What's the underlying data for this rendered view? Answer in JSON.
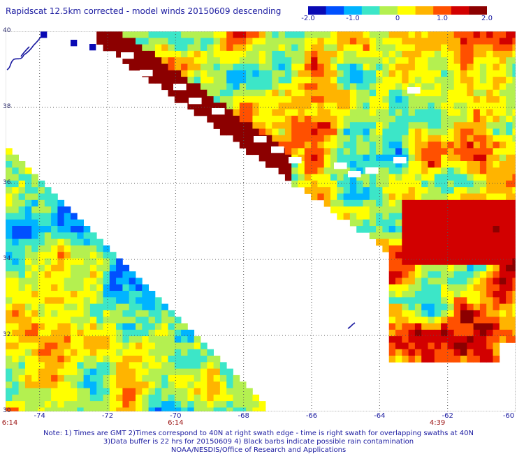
{
  "title": "Rapidscat 12.5km corrected - model winds 20150609 descending",
  "colorbar": {
    "ticks": [
      "-2.0",
      "-1.0",
      "0",
      "1.0",
      "2.0"
    ],
    "min": -2.0,
    "max": 2.0,
    "colors": [
      "#0a0ab4",
      "#0050ff",
      "#00b4ff",
      "#3ce6c8",
      "#b4f050",
      "#ffff00",
      "#ffb400",
      "#ff5000",
      "#d20000",
      "#8c0000"
    ]
  },
  "map": {
    "lat_labels": [
      "40",
      "38",
      "36",
      "34",
      "32",
      "30"
    ],
    "lon_labels": [
      "-74",
      "-72",
      "-70",
      "-68",
      "-66",
      "-64",
      "-62",
      "-60"
    ],
    "lat_range": [
      30,
      40
    ],
    "lon_range": [
      -75,
      -60
    ],
    "grid": "dotted"
  },
  "times": [
    {
      "label": "6:14",
      "lon": -75.0
    },
    {
      "label": "6:14",
      "lon": -70.0
    },
    {
      "label": "4:39",
      "lon": -62.3
    }
  ],
  "notes": [
    "Note: 1) Times are GMT 2)Times correspond to 40N at right swath edge - time is right swath for overlapping swaths at 40N",
    "3)Data buffer is 22 hrs for 20150609 4) Black barbs indicate possible rain contamination",
    "NOAA/NESDIS/Office of Research and Applications"
  ]
}
